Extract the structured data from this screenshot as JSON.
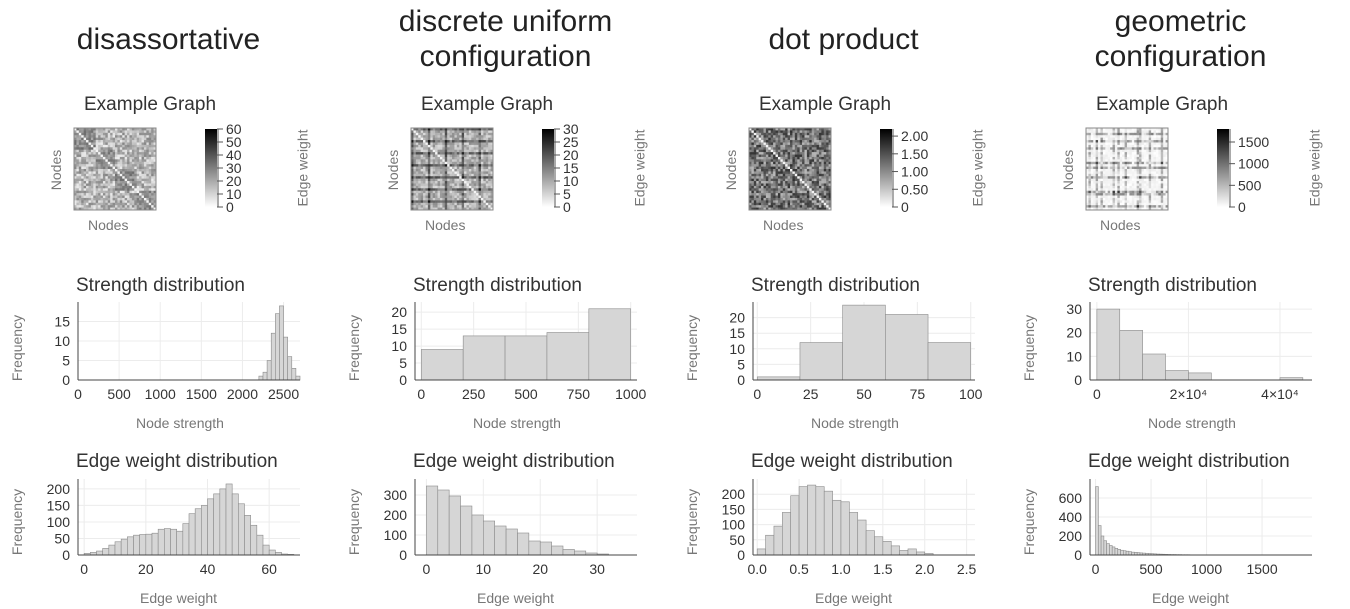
{
  "figure": {
    "example_label": "Example Graph",
    "nodes_label": "Nodes",
    "edge_weight_label": "Edge weight",
    "strength_title": "Strength distribution",
    "edge_title": "Edge weight distribution",
    "frequency_label": "Frequency",
    "node_strength_label": "Node strength"
  },
  "colors": {
    "bar_fill": "#d6d6d6",
    "bar_stroke": "#8a8a8a",
    "grid": "#ececec",
    "axis": "#444444"
  },
  "chart_data": [
    {
      "panel": "disassortative",
      "title_lines": [
        "disassortative"
      ],
      "heatmap": {
        "type": "heatmap",
        "pattern": "blocks",
        "colorbar_ticks": [
          "60",
          "50",
          "40",
          "30",
          "20",
          "10",
          "0"
        ],
        "colorbar_range": [
          0,
          60
        ]
      },
      "strength": {
        "type": "bar",
        "xlim": [
          0,
          2700
        ],
        "ylim": [
          0,
          20
        ],
        "xticks": [
          "0",
          "500",
          "1000",
          "1500",
          "2000",
          "2500"
        ],
        "xtick_values": [
          0,
          500,
          1000,
          1500,
          2000,
          2500
        ],
        "yticks": [
          "0",
          "5",
          "10",
          "15"
        ],
        "ytick_values": [
          0,
          5,
          10,
          15
        ],
        "bin_start": 2200,
        "bin_width": 50,
        "values": [
          1,
          2,
          5,
          12,
          17,
          19,
          11,
          6,
          3,
          1
        ]
      },
      "edges": {
        "type": "bar",
        "xlim": [
          -2,
          70
        ],
        "ylim": [
          0,
          230
        ],
        "xticks": [
          "0",
          "20",
          "40",
          "60"
        ],
        "xtick_values": [
          0,
          20,
          40,
          60
        ],
        "yticks": [
          "0",
          "50",
          "100",
          "150",
          "200"
        ],
        "ytick_values": [
          0,
          50,
          100,
          150,
          200
        ],
        "bin_start": 0,
        "bin_width": 2,
        "values": [
          5,
          8,
          12,
          20,
          30,
          40,
          48,
          55,
          60,
          62,
          63,
          66,
          78,
          80,
          78,
          72,
          95,
          125,
          140,
          150,
          170,
          185,
          200,
          215,
          185,
          155,
          120,
          90,
          60,
          30,
          15,
          8,
          3,
          2
        ]
      }
    },
    {
      "panel": "discrete uniform configuration",
      "title_lines": [
        "discrete uniform",
        "configuration"
      ],
      "heatmap": {
        "type": "heatmap",
        "pattern": "stripes",
        "colorbar_ticks": [
          "30",
          "25",
          "20",
          "15",
          "10",
          "5",
          "0"
        ],
        "colorbar_range": [
          0,
          30
        ]
      },
      "strength": {
        "type": "bar",
        "xlim": [
          -30,
          1030
        ],
        "ylim": [
          0,
          23
        ],
        "xticks": [
          "0",
          "250",
          "500",
          "750",
          "1000"
        ],
        "xtick_values": [
          0,
          250,
          500,
          750,
          1000
        ],
        "yticks": [
          "0",
          "5",
          "10",
          "15",
          "20"
        ],
        "ytick_values": [
          0,
          5,
          10,
          15,
          20
        ],
        "bin_start": 0,
        "bin_width": 200,
        "values": [
          9,
          13,
          13,
          14,
          21
        ]
      },
      "edges": {
        "type": "bar",
        "xlim": [
          -2,
          37
        ],
        "ylim": [
          0,
          380
        ],
        "xticks": [
          "0",
          "10",
          "20",
          "30"
        ],
        "xtick_values": [
          0,
          10,
          20,
          30
        ],
        "yticks": [
          "0",
          "100",
          "200",
          "300"
        ],
        "ytick_values": [
          0,
          100,
          200,
          300
        ],
        "bin_start": 0,
        "bin_width": 2,
        "values": [
          345,
          325,
          295,
          245,
          200,
          170,
          145,
          130,
          110,
          70,
          65,
          45,
          28,
          20,
          10,
          5
        ]
      }
    },
    {
      "panel": "dot product",
      "title_lines": [
        "dot product"
      ],
      "heatmap": {
        "type": "heatmap",
        "pattern": "dense",
        "colorbar_ticks": [
          "2.00",
          "1.50",
          "1.00",
          "0.50",
          "0"
        ],
        "colorbar_range": [
          0,
          2.2
        ]
      },
      "strength": {
        "type": "bar",
        "xlim": [
          -2,
          102
        ],
        "ylim": [
          0,
          25
        ],
        "xticks": [
          "0",
          "25",
          "50",
          "75",
          "100"
        ],
        "xtick_values": [
          0,
          25,
          50,
          75,
          100
        ],
        "yticks": [
          "0",
          "5",
          "10",
          "15",
          "20"
        ],
        "ytick_values": [
          0,
          5,
          10,
          15,
          20
        ],
        "bin_start": 0,
        "bin_width": 20,
        "values": [
          1,
          12,
          24,
          21,
          12
        ]
      },
      "edges": {
        "type": "bar",
        "xlim": [
          -0.05,
          2.6
        ],
        "ylim": [
          0,
          250
        ],
        "xticks": [
          "0.0",
          "0.5",
          "1.0",
          "1.5",
          "2.0",
          "2.5"
        ],
        "xtick_values": [
          0,
          0.5,
          1,
          1.5,
          2,
          2.5
        ],
        "yticks": [
          "0",
          "50",
          "100",
          "150",
          "200"
        ],
        "ytick_values": [
          0,
          50,
          100,
          150,
          200
        ],
        "bin_start": 0,
        "bin_width": 0.1,
        "values": [
          20,
          65,
          95,
          140,
          195,
          225,
          230,
          225,
          210,
          180,
          175,
          140,
          115,
          80,
          60,
          45,
          30,
          15,
          20,
          10,
          5
        ]
      }
    },
    {
      "panel": "geometric configuration",
      "title_lines": [
        "geometric",
        "configuration"
      ],
      "heatmap": {
        "type": "heatmap",
        "pattern": "sparse",
        "colorbar_ticks": [
          "1500",
          "1000",
          "500",
          "0"
        ],
        "colorbar_range": [
          0,
          1800
        ]
      },
      "strength": {
        "type": "bar",
        "xlim": [
          -1500,
          47000
        ],
        "ylim": [
          0,
          33
        ],
        "xticks": [
          "0",
          "2×10⁴",
          "4×10⁴"
        ],
        "xtick_values": [
          0,
          20000,
          40000
        ],
        "yticks": [
          "0",
          "10",
          "20",
          "30"
        ],
        "ytick_values": [
          0,
          10,
          20,
          30
        ],
        "bin_start": 0,
        "bin_width": 5000,
        "values": [
          30,
          21,
          11,
          4,
          3,
          0,
          0,
          0,
          1
        ]
      },
      "edges": {
        "type": "bar",
        "xlim": [
          -50,
          1950
        ],
        "ylim": [
          0,
          800
        ],
        "xticks": [
          "0",
          "500",
          "1000",
          "1500"
        ],
        "xtick_values": [
          0,
          500,
          1000,
          1500
        ],
        "yticks": [
          "0",
          "200",
          "400",
          "600"
        ],
        "ytick_values": [
          0,
          200,
          400,
          600
        ],
        "bin_start": 0,
        "bin_width": 25,
        "values": [
          720,
          310,
          200,
          150,
          120,
          100,
          85,
          70,
          60,
          50,
          45,
          40,
          35,
          30,
          28,
          25,
          22,
          20,
          18,
          16,
          14,
          12,
          10,
          9,
          8,
          7,
          6,
          5,
          5,
          4,
          4,
          3,
          3,
          3,
          2,
          2,
          2,
          2,
          1,
          1,
          1,
          1,
          1,
          1,
          1,
          1,
          1,
          1,
          1,
          1,
          1,
          1,
          1,
          1,
          1,
          1,
          1,
          1,
          1,
          1,
          1,
          1,
          1,
          1
        ]
      }
    }
  ]
}
